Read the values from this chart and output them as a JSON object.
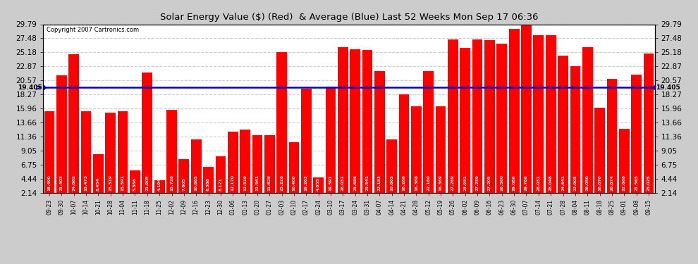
{
  "title": "Solar Energy Value ($) (Red)  & Average (Blue) Last 52 Weeks Mon Sep 17 06:36",
  "copyright": "Copyright 2007 Cartronics.com",
  "average_line": 19.405,
  "bar_color": "#ff0000",
  "avg_line_color": "#0000cc",
  "background_color": "#cccccc",
  "plot_bg_color": "#ffffff",
  "ylim": [
    2.14,
    29.79
  ],
  "yticks": [
    2.14,
    4.44,
    6.75,
    9.05,
    11.36,
    13.66,
    15.96,
    18.27,
    20.57,
    22.87,
    25.18,
    27.48,
    29.79
  ],
  "categories": [
    "09-23",
    "09-30",
    "10-07",
    "10-14",
    "10-21",
    "10-28",
    "11-04",
    "11-11",
    "11-18",
    "11-25",
    "12-02",
    "12-09",
    "12-16",
    "12-23",
    "12-30",
    "01-06",
    "01-13",
    "01-20",
    "01-27",
    "02-03",
    "02-10",
    "02-17",
    "02-24",
    "03-10",
    "03-17",
    "03-24",
    "03-31",
    "04-07",
    "04-14",
    "04-21",
    "04-28",
    "05-12",
    "05-19",
    "05-26",
    "06-02",
    "06-09",
    "06-16",
    "06-23",
    "06-30",
    "07-07",
    "07-14",
    "07-21",
    "07-28",
    "08-04",
    "08-11",
    "08-18",
    "08-25",
    "09-01",
    "09-08",
    "09-15"
  ],
  "values": [
    15.49,
    21.403,
    24.882,
    15.473,
    8.454,
    15.319,
    15.541,
    5.866,
    21.905,
    4.194,
    15.728,
    7.605,
    10.885,
    6.388,
    8.121,
    12.17,
    12.519,
    11.561,
    11.628,
    25.228,
    10.4,
    19.263,
    4.655,
    19.591,
    26.031,
    25.686,
    25.541,
    22.153,
    10.865,
    18.288,
    16.368,
    22.16,
    16.369,
    27.269,
    25.931,
    27.259,
    27.205,
    26.56,
    29.086,
    29.786,
    28.031,
    28.048,
    24.641,
    22.905,
    26.05,
    16.07,
    20.874,
    12.668,
    21.565,
    25.025
  ],
  "grid_color": "#bbbbbb",
  "grid_style": "--",
  "grid_alpha": 1.0
}
